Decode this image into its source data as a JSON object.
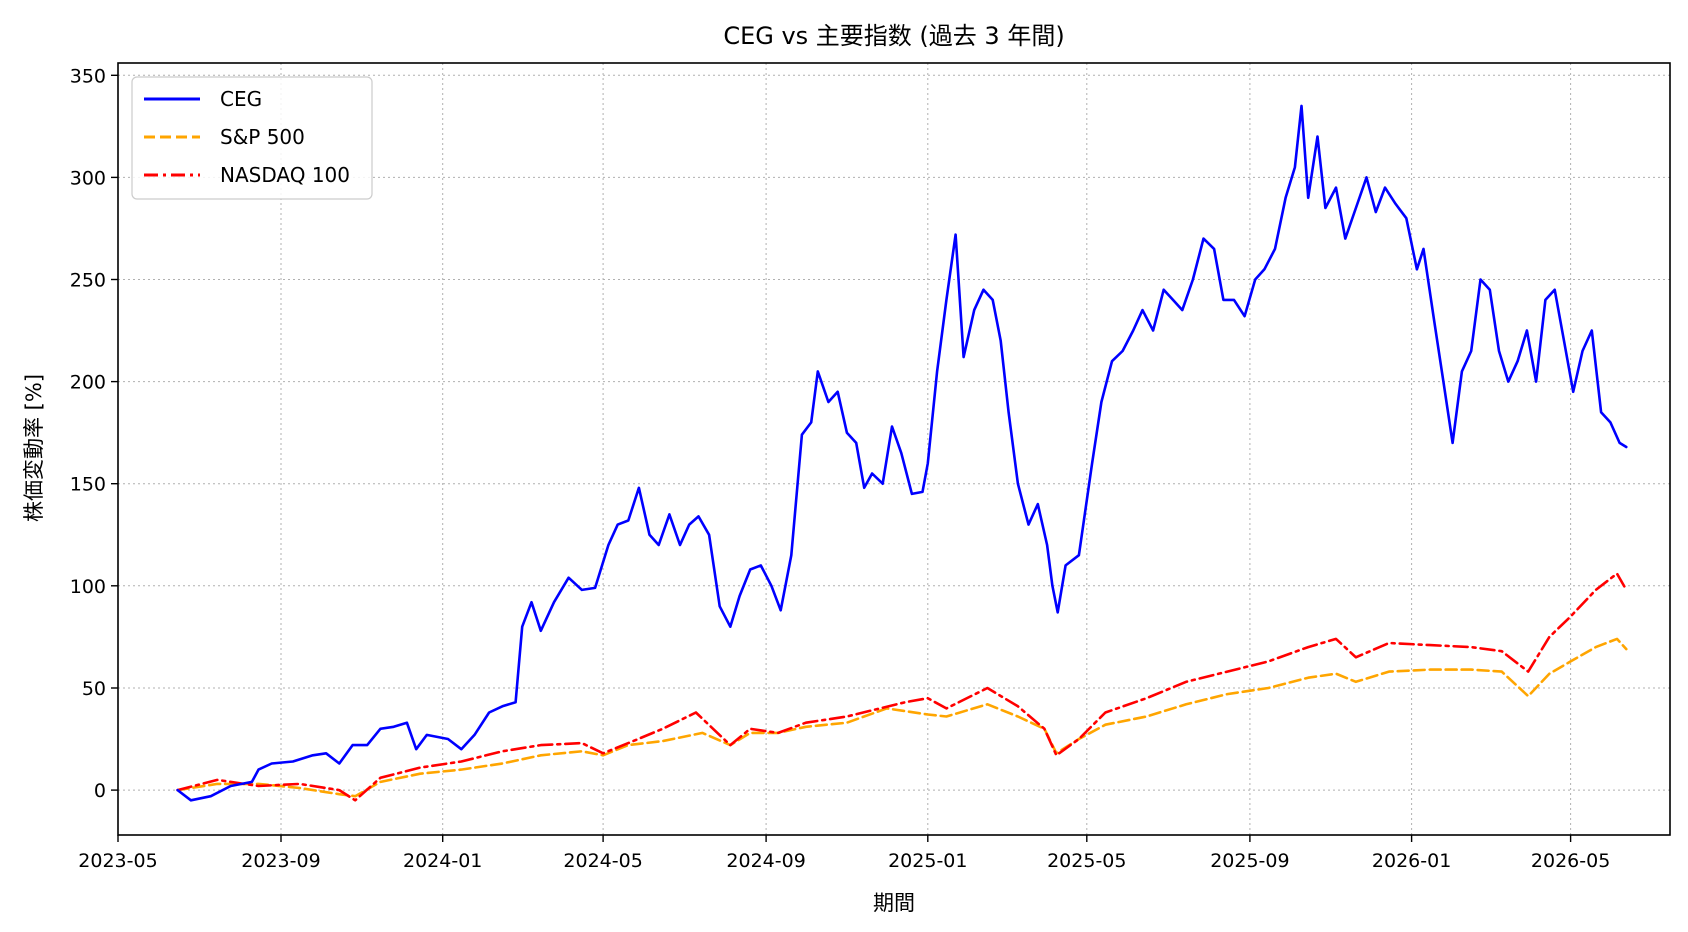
{
  "chart_data": {
    "type": "line",
    "title": "CEG vs 主要指数 (過去 3 年間)",
    "xlabel": "期間",
    "ylabel": "株価変動率 [%]",
    "xlim": [
      "2023-05-01",
      "2026-07-15"
    ],
    "ylim": [
      -22,
      356
    ],
    "x_ticks": [
      "2023-05-01",
      "2023-09-01",
      "2024-01-01",
      "2024-05-01",
      "2024-09-01",
      "2025-01-01",
      "2025-05-01",
      "2025-09-01",
      "2026-01-01",
      "2026-05-01"
    ],
    "x_tick_labels": [
      "2023-05",
      "2023-09",
      "2024-01",
      "2024-05",
      "2024-09",
      "2025-01",
      "2025-05",
      "2025-09",
      "2026-01",
      "2026-05"
    ],
    "y_ticks": [
      0,
      50,
      100,
      150,
      200,
      250,
      300,
      350
    ],
    "y_tick_labels": [
      "0",
      "50",
      "100",
      "150",
      "200",
      "250",
      "300",
      "350"
    ],
    "grid": true,
    "legend_position": "top-left",
    "series": [
      {
        "name": "CEG",
        "color": "#0000ff",
        "style": "solid",
        "points": [
          [
            "2023-06-15",
            0
          ],
          [
            "2023-06-25",
            -5
          ],
          [
            "2023-07-10",
            -3
          ],
          [
            "2023-07-25",
            2
          ],
          [
            "2023-08-10",
            4
          ],
          [
            "2023-08-15",
            10
          ],
          [
            "2023-08-25",
            13
          ],
          [
            "2023-09-10",
            14
          ],
          [
            "2023-09-25",
            17
          ],
          [
            "2023-10-05",
            18
          ],
          [
            "2023-10-15",
            13
          ],
          [
            "2023-10-25",
            22
          ],
          [
            "2023-11-05",
            22
          ],
          [
            "2023-11-15",
            30
          ],
          [
            "2023-11-25",
            31
          ],
          [
            "2023-12-05",
            33
          ],
          [
            "2023-12-12",
            20
          ],
          [
            "2023-12-20",
            27
          ],
          [
            "2024-01-05",
            25
          ],
          [
            "2024-01-15",
            20
          ],
          [
            "2024-01-25",
            27
          ],
          [
            "2024-02-05",
            38
          ],
          [
            "2024-02-15",
            41
          ],
          [
            "2024-02-25",
            43
          ],
          [
            "2024-03-01",
            80
          ],
          [
            "2024-03-08",
            92
          ],
          [
            "2024-03-15",
            78
          ],
          [
            "2024-03-25",
            92
          ],
          [
            "2024-04-05",
            104
          ],
          [
            "2024-04-15",
            98
          ],
          [
            "2024-04-25",
            99
          ],
          [
            "2024-05-05",
            120
          ],
          [
            "2024-05-12",
            130
          ],
          [
            "2024-05-20",
            132
          ],
          [
            "2024-05-28",
            148
          ],
          [
            "2024-06-05",
            125
          ],
          [
            "2024-06-12",
            120
          ],
          [
            "2024-06-20",
            135
          ],
          [
            "2024-06-28",
            120
          ],
          [
            "2024-07-05",
            130
          ],
          [
            "2024-07-12",
            134
          ],
          [
            "2024-07-20",
            125
          ],
          [
            "2024-07-28",
            90
          ],
          [
            "2024-08-05",
            80
          ],
          [
            "2024-08-12",
            95
          ],
          [
            "2024-08-20",
            108
          ],
          [
            "2024-08-28",
            110
          ],
          [
            "2024-09-05",
            100
          ],
          [
            "2024-09-12",
            88
          ],
          [
            "2024-09-20",
            115
          ],
          [
            "2024-09-28",
            174
          ],
          [
            "2024-10-05",
            180
          ],
          [
            "2024-10-10",
            205
          ],
          [
            "2024-10-18",
            190
          ],
          [
            "2024-10-25",
            195
          ],
          [
            "2024-11-01",
            175
          ],
          [
            "2024-11-08",
            170
          ],
          [
            "2024-11-14",
            148
          ],
          [
            "2024-11-20",
            155
          ],
          [
            "2024-11-28",
            150
          ],
          [
            "2024-12-05",
            178
          ],
          [
            "2024-12-12",
            165
          ],
          [
            "2024-12-20",
            145
          ],
          [
            "2024-12-28",
            146
          ],
          [
            "2025-01-01",
            160
          ],
          [
            "2025-01-08",
            205
          ],
          [
            "2025-01-15",
            240
          ],
          [
            "2025-01-22",
            272
          ],
          [
            "2025-01-28",
            212
          ],
          [
            "2025-02-05",
            235
          ],
          [
            "2025-02-12",
            245
          ],
          [
            "2025-02-19",
            240
          ],
          [
            "2025-02-25",
            220
          ],
          [
            "2025-03-03",
            185
          ],
          [
            "2025-03-10",
            150
          ],
          [
            "2025-03-18",
            130
          ],
          [
            "2025-03-25",
            140
          ],
          [
            "2025-04-01",
            120
          ],
          [
            "2025-04-05",
            100
          ],
          [
            "2025-04-09",
            87
          ],
          [
            "2025-04-15",
            110
          ],
          [
            "2025-04-25",
            115
          ],
          [
            "2025-05-05",
            160
          ],
          [
            "2025-05-12",
            190
          ],
          [
            "2025-05-20",
            210
          ],
          [
            "2025-05-28",
            215
          ],
          [
            "2025-06-05",
            225
          ],
          [
            "2025-06-12",
            235
          ],
          [
            "2025-06-20",
            225
          ],
          [
            "2025-06-28",
            245
          ],
          [
            "2025-07-05",
            240
          ],
          [
            "2025-07-12",
            235
          ],
          [
            "2025-07-20",
            250
          ],
          [
            "2025-07-28",
            270
          ],
          [
            "2025-08-05",
            265
          ],
          [
            "2025-08-12",
            240
          ],
          [
            "2025-08-20",
            240
          ],
          [
            "2025-08-28",
            232
          ],
          [
            "2025-09-05",
            250
          ],
          [
            "2025-09-12",
            255
          ],
          [
            "2025-09-20",
            265
          ],
          [
            "2025-09-28",
            290
          ],
          [
            "2025-10-05",
            305
          ],
          [
            "2025-10-10",
            335
          ],
          [
            "2025-10-15",
            290
          ],
          [
            "2025-10-22",
            320
          ],
          [
            "2025-10-28",
            285
          ],
          [
            "2025-11-05",
            295
          ],
          [
            "2025-11-12",
            270
          ],
          [
            "2025-11-20",
            285
          ],
          [
            "2025-11-28",
            300
          ],
          [
            "2025-12-05",
            283
          ],
          [
            "2025-12-12",
            295
          ],
          [
            "2025-12-20",
            287
          ],
          [
            "2025-12-28",
            280
          ],
          [
            "2026-01-05",
            255
          ],
          [
            "2026-01-10",
            265
          ],
          [
            "2026-01-18",
            230
          ],
          [
            "2026-01-25",
            200
          ],
          [
            "2026-02-01",
            170
          ],
          [
            "2026-02-08",
            205
          ],
          [
            "2026-02-15",
            215
          ],
          [
            "2026-02-22",
            250
          ],
          [
            "2026-03-01",
            245
          ],
          [
            "2026-03-08",
            215
          ],
          [
            "2026-03-15",
            200
          ],
          [
            "2026-03-22",
            210
          ],
          [
            "2026-03-29",
            225
          ],
          [
            "2026-04-05",
            200
          ],
          [
            "2026-04-12",
            240
          ],
          [
            "2026-04-19",
            245
          ],
          [
            "2026-04-26",
            220
          ],
          [
            "2026-05-03",
            195
          ],
          [
            "2026-05-10",
            215
          ],
          [
            "2026-05-17",
            225
          ],
          [
            "2026-05-24",
            185
          ],
          [
            "2026-05-31",
            180
          ],
          [
            "2026-06-07",
            170
          ],
          [
            "2026-06-12",
            168
          ]
        ]
      },
      {
        "name": "S&P 500",
        "color": "#ffa500",
        "style": "dashed",
        "points": [
          [
            "2023-06-15",
            0
          ],
          [
            "2023-07-15",
            3
          ],
          [
            "2023-08-15",
            3
          ],
          [
            "2023-09-15",
            1
          ],
          [
            "2023-10-15",
            -2
          ],
          [
            "2023-10-27",
            -3
          ],
          [
            "2023-11-15",
            4
          ],
          [
            "2023-12-15",
            8
          ],
          [
            "2024-01-15",
            10
          ],
          [
            "2024-02-15",
            13
          ],
          [
            "2024-03-15",
            17
          ],
          [
            "2024-04-15",
            19
          ],
          [
            "2024-05-01",
            17
          ],
          [
            "2024-05-20",
            22
          ],
          [
            "2024-06-15",
            24
          ],
          [
            "2024-07-15",
            28
          ],
          [
            "2024-08-05",
            22
          ],
          [
            "2024-08-20",
            28
          ],
          [
            "2024-09-10",
            28
          ],
          [
            "2024-10-01",
            31
          ],
          [
            "2024-11-01",
            33
          ],
          [
            "2024-12-01",
            40
          ],
          [
            "2025-01-01",
            37
          ],
          [
            "2025-01-15",
            36
          ],
          [
            "2025-02-15",
            42
          ],
          [
            "2025-03-10",
            36
          ],
          [
            "2025-03-30",
            30
          ],
          [
            "2025-04-08",
            18
          ],
          [
            "2025-04-25",
            25
          ],
          [
            "2025-05-15",
            32
          ],
          [
            "2025-06-15",
            36
          ],
          [
            "2025-07-15",
            42
          ],
          [
            "2025-08-15",
            47
          ],
          [
            "2025-09-15",
            50
          ],
          [
            "2025-10-15",
            55
          ],
          [
            "2025-11-05",
            57
          ],
          [
            "2025-11-20",
            53
          ],
          [
            "2025-12-15",
            58
          ],
          [
            "2026-01-15",
            59
          ],
          [
            "2026-02-15",
            59
          ],
          [
            "2026-03-10",
            58
          ],
          [
            "2026-03-30",
            46
          ],
          [
            "2026-04-15",
            57
          ],
          [
            "2026-05-01",
            63
          ],
          [
            "2026-05-20",
            70
          ],
          [
            "2026-06-05",
            74
          ],
          [
            "2026-06-12",
            69
          ]
        ]
      },
      {
        "name": "NASDAQ 100",
        "color": "#ff0000",
        "style": "dashdot",
        "points": [
          [
            "2023-06-15",
            0
          ],
          [
            "2023-07-15",
            5
          ],
          [
            "2023-08-15",
            2
          ],
          [
            "2023-09-15",
            3
          ],
          [
            "2023-10-15",
            0
          ],
          [
            "2023-10-27",
            -5
          ],
          [
            "2023-11-15",
            6
          ],
          [
            "2023-12-15",
            11
          ],
          [
            "2024-01-15",
            14
          ],
          [
            "2024-02-15",
            19
          ],
          [
            "2024-03-15",
            22
          ],
          [
            "2024-04-15",
            23
          ],
          [
            "2024-05-01",
            18
          ],
          [
            "2024-05-20",
            23
          ],
          [
            "2024-06-15",
            30
          ],
          [
            "2024-07-10",
            38
          ],
          [
            "2024-08-05",
            22
          ],
          [
            "2024-08-20",
            30
          ],
          [
            "2024-09-10",
            28
          ],
          [
            "2024-10-01",
            33
          ],
          [
            "2024-11-01",
            36
          ],
          [
            "2024-12-15",
            43
          ],
          [
            "2025-01-01",
            45
          ],
          [
            "2025-01-15",
            40
          ],
          [
            "2025-02-15",
            50
          ],
          [
            "2025-03-10",
            41
          ],
          [
            "2025-03-30",
            30
          ],
          [
            "2025-04-08",
            17
          ],
          [
            "2025-04-25",
            25
          ],
          [
            "2025-05-15",
            38
          ],
          [
            "2025-06-15",
            45
          ],
          [
            "2025-07-15",
            53
          ],
          [
            "2025-08-15",
            58
          ],
          [
            "2025-09-15",
            63
          ],
          [
            "2025-10-15",
            70
          ],
          [
            "2025-11-05",
            74
          ],
          [
            "2025-11-20",
            65
          ],
          [
            "2025-12-15",
            72
          ],
          [
            "2026-01-15",
            71
          ],
          [
            "2026-02-15",
            70
          ],
          [
            "2026-03-10",
            68
          ],
          [
            "2026-03-30",
            58
          ],
          [
            "2026-04-15",
            75
          ],
          [
            "2026-05-01",
            85
          ],
          [
            "2026-05-20",
            98
          ],
          [
            "2026-06-05",
            106
          ],
          [
            "2026-06-12",
            98
          ]
        ]
      }
    ]
  }
}
